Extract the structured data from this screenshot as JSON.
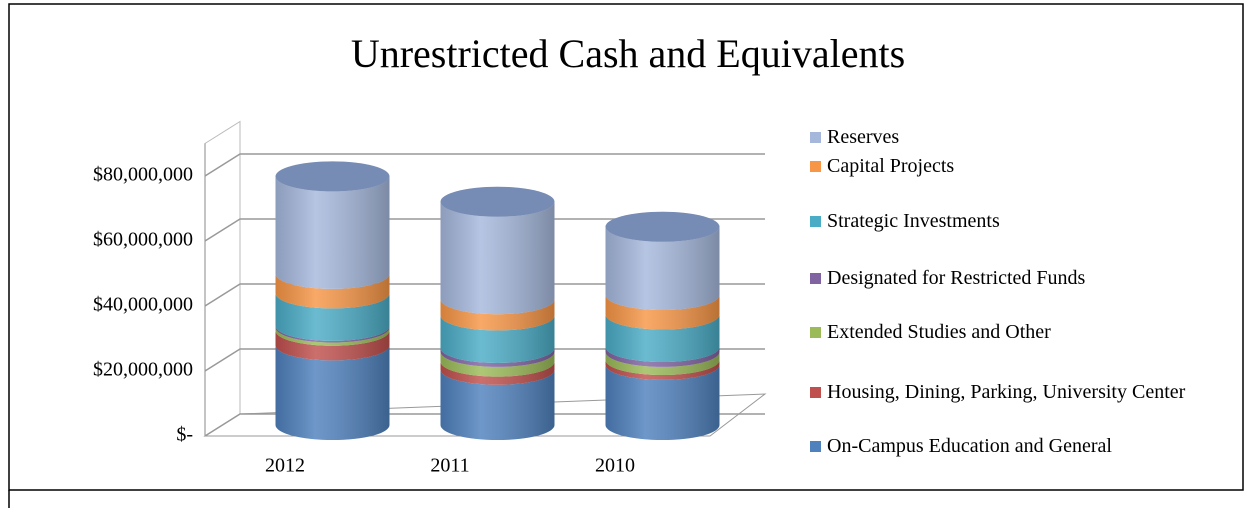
{
  "chart_data": {
    "type": "bar3d-stacked-cylinder",
    "title": "Unrestricted Cash and Equivalents",
    "categories": [
      "2012",
      "2011",
      "2010"
    ],
    "series": [
      {
        "name": "On-Campus Education and General",
        "color": "#4f81bd",
        "values": [
          24500000,
          17000000,
          18500000
        ]
      },
      {
        "name": "Housing, Dining, Parking, University Center",
        "color": "#c0504d",
        "values": [
          4500000,
          2500000,
          1500000
        ]
      },
      {
        "name": "Extended Studies and Other",
        "color": "#9bbb59",
        "values": [
          1000000,
          3000000,
          2500000
        ]
      },
      {
        "name": "Designated for Restricted Funds",
        "color": "#8064a2",
        "values": [
          500000,
          1200000,
          1500000
        ]
      },
      {
        "name": "Strategic Investments",
        "color": "#4bacc6",
        "values": [
          10000000,
          10000000,
          10000000
        ]
      },
      {
        "name": "Capital Projects",
        "color": "#f79646",
        "values": [
          6000000,
          5000000,
          6000000
        ]
      },
      {
        "name": "Reserves",
        "color": "#a5b8dc",
        "values": [
          30000000,
          30000000,
          21000000
        ]
      }
    ],
    "ylim": [
      0,
      90000000
    ],
    "yticks": [
      {
        "value": 0,
        "label": "$-"
      },
      {
        "value": 20000000,
        "label": "$20,000,000"
      },
      {
        "value": 40000000,
        "label": "$40,000,000"
      },
      {
        "value": 60000000,
        "label": "$60,000,000"
      },
      {
        "value": 80000000,
        "label": "$80,000,000"
      }
    ],
    "grid": true,
    "legend": "right"
  }
}
